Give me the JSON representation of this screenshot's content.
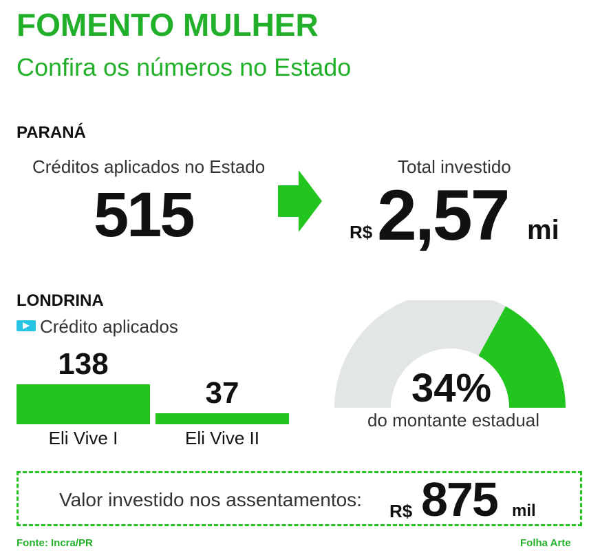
{
  "header": {
    "title": "FOMENTO MULHER",
    "subtitle": "Confira os números no Estado"
  },
  "parana": {
    "heading": "PARANÁ",
    "credits_label": "Créditos aplicados no Estado",
    "credits_value": "515",
    "total_label": "Total investido",
    "total_prefix": "R$",
    "total_value": "2,57",
    "total_unit": "mi"
  },
  "londrina": {
    "heading": "LONDRINA",
    "legend_label": "Crédito aplicados",
    "gauge_value_label": "34%",
    "gauge_caption": "do montante estadual"
  },
  "investment": {
    "label": "Valor investido nos assentamentos:",
    "prefix": "R$",
    "value": "875",
    "unit": "mil"
  },
  "footer": {
    "source": "Fonte: Incra/PR",
    "credit": "Folha Arte"
  },
  "colors": {
    "green": "#22c41e",
    "title_green": "#22b02a",
    "gauge_gray": "#e3e6e6",
    "legend_cyan": "#29c4e3"
  },
  "chart_data": [
    {
      "type": "bar",
      "categories": [
        "Eli Vive I",
        "Eli Vive II"
      ],
      "values": [
        138,
        37
      ],
      "title": "",
      "legend": [
        "Crédito aplicados"
      ]
    },
    {
      "type": "pie",
      "style": "semicircle-gauge",
      "values": [
        34,
        66
      ],
      "labels": [
        "34%",
        ""
      ],
      "caption": "do montante estadual"
    }
  ]
}
